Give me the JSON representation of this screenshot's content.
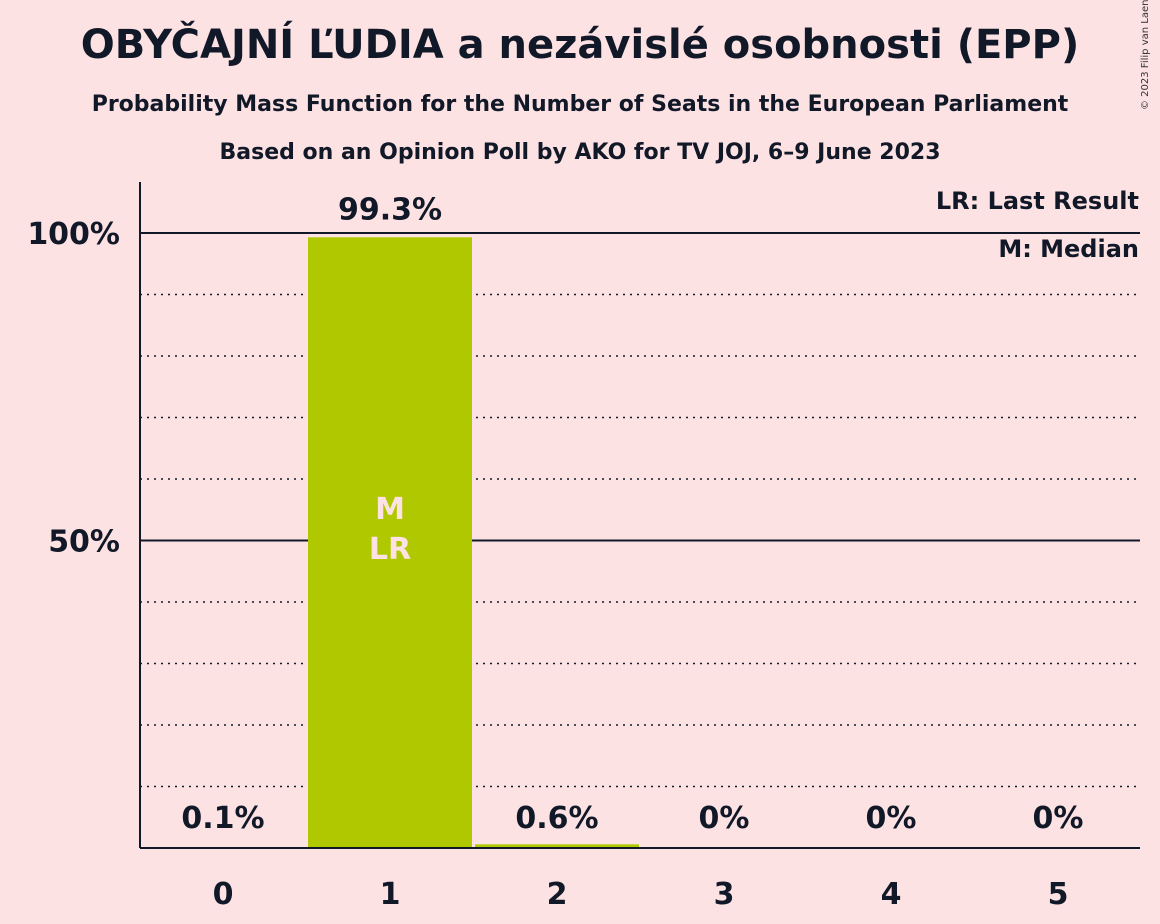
{
  "header": {
    "title": "OBYČAJNÍ ĽUDIA a nezávislé osobnosti (EPP)",
    "subtitle": "Probability Mass Function for the Number of Seats in the European Parliament",
    "source": "Based on an Opinion Poll by AKO for TV JOJ, 6–9 June 2023",
    "copyright": "© 2023 Filip van Laenen"
  },
  "legend": {
    "last_result": "LR: Last Result",
    "median": "M: Median"
  },
  "colors": {
    "bar": "#afc800",
    "background": "#fde2e4",
    "text": "#111827"
  },
  "chart_data": {
    "type": "bar",
    "categories": [
      "0",
      "1",
      "2",
      "3",
      "4",
      "5"
    ],
    "values": [
      0.1,
      99.3,
      0.6,
      0,
      0,
      0
    ],
    "labels": [
      "0.1%",
      "99.3%",
      "0.6%",
      "0%",
      "0%",
      "0%"
    ],
    "ylim": [
      0,
      100
    ],
    "yticks": [
      {
        "value": 50,
        "label": "50%"
      },
      {
        "value": 100,
        "label": "100%"
      }
    ],
    "minor_gridlines": [
      10,
      20,
      30,
      40,
      60,
      70,
      80,
      90
    ],
    "markers": {
      "median": {
        "category": "1",
        "text": "M"
      },
      "last_result": {
        "category": "1",
        "text": "LR"
      }
    },
    "grid": true,
    "legend_position": "top-right"
  }
}
